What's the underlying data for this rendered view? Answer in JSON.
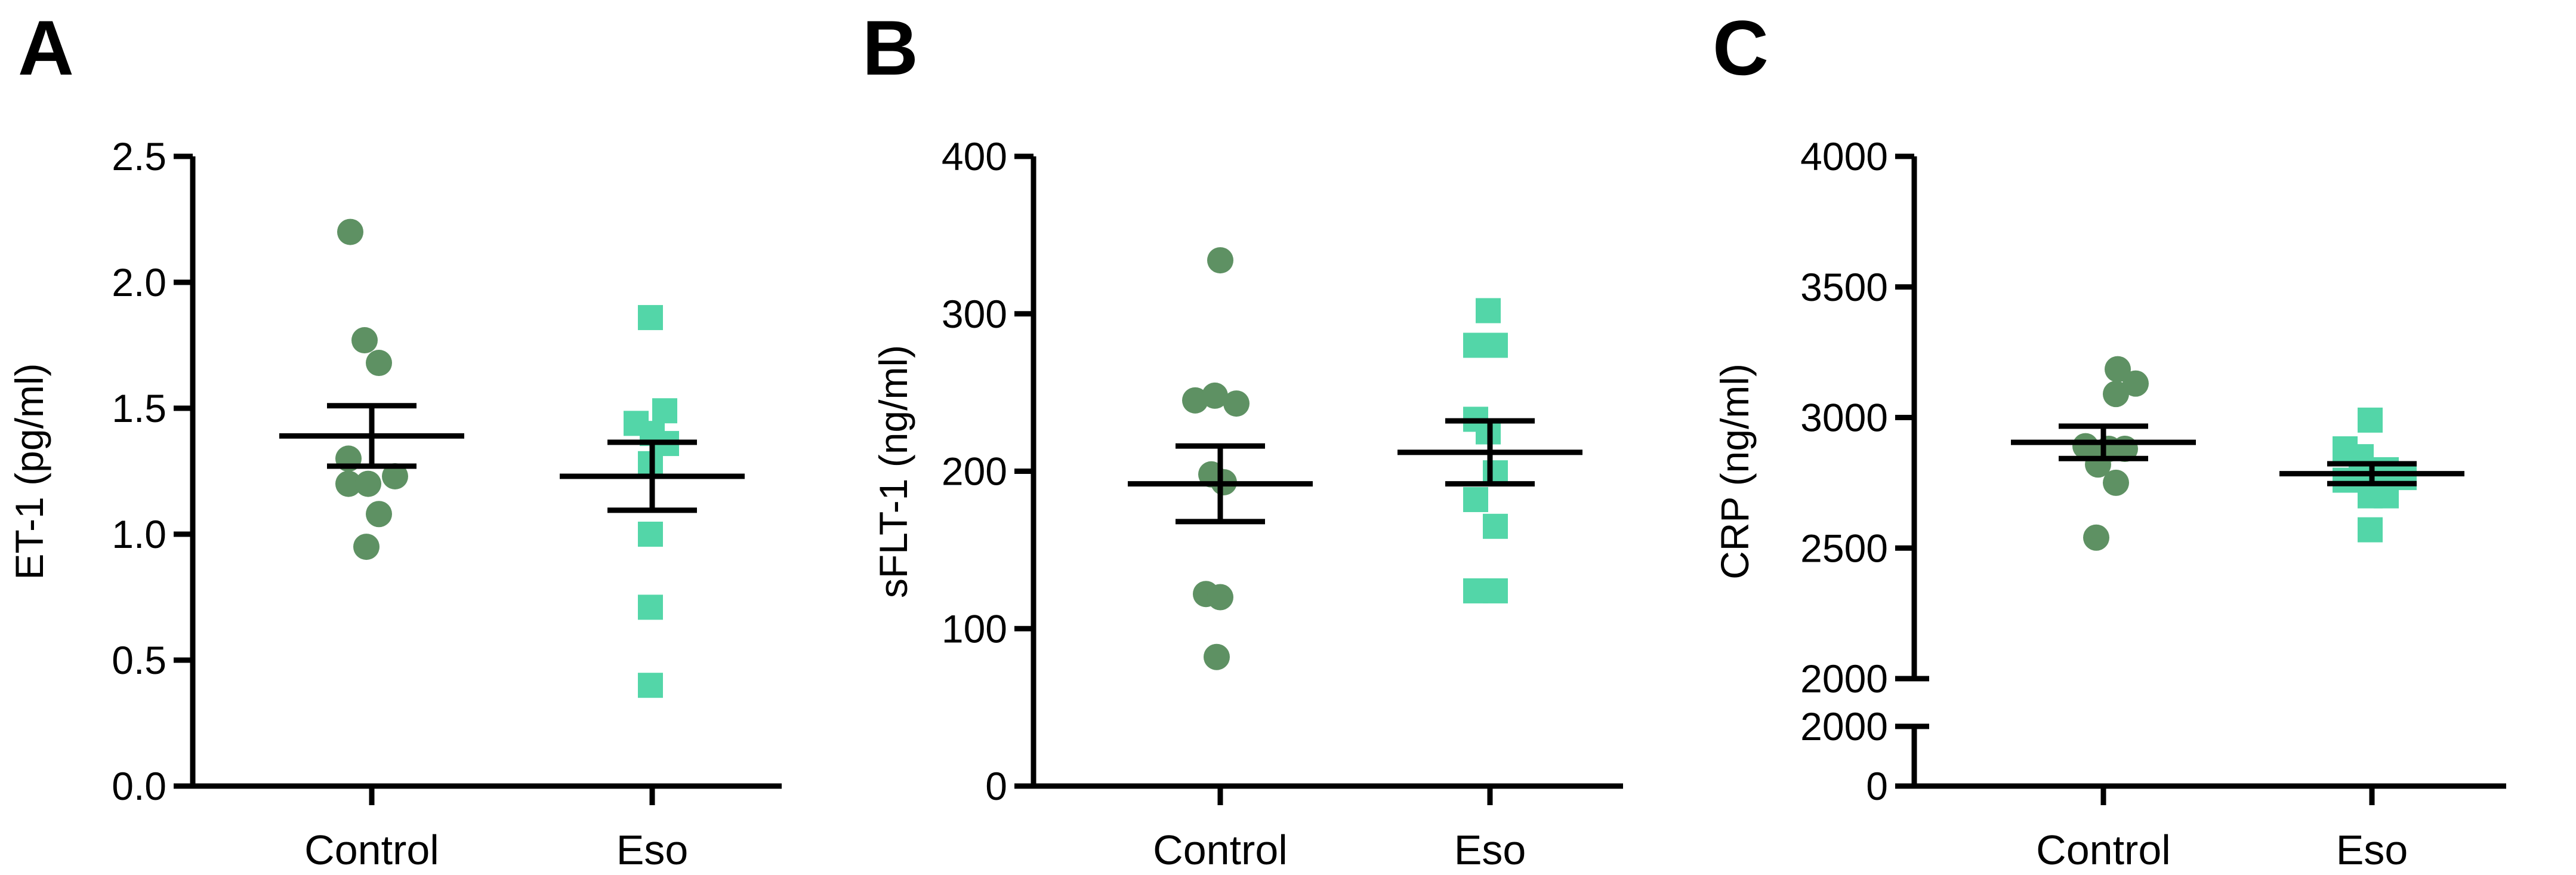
{
  "chart_data": [
    {
      "panel": "A",
      "type": "scatter",
      "ylabel": "ET-1 (pg/ml)",
      "categories": [
        "Control",
        "Eso"
      ],
      "ylim": [
        0,
        2.5
      ],
      "yticks": [
        0.0,
        0.5,
        1.0,
        1.5,
        2.0,
        2.5
      ],
      "ytick_labels": [
        "0.0",
        "0.5",
        "1.0",
        "1.5",
        "2.0",
        "2.5"
      ],
      "series": [
        {
          "name": "Control",
          "marker": "circle",
          "color": "#5e9163",
          "points": [
            [
              -0.12,
              2.2
            ],
            [
              -0.04,
              1.77
            ],
            [
              0.04,
              1.68
            ],
            [
              -0.13,
              1.3
            ],
            [
              -0.13,
              1.2
            ],
            [
              0.13,
              1.23
            ],
            [
              -0.02,
              1.2
            ],
            [
              0.04,
              1.08
            ],
            [
              -0.03,
              0.95
            ]
          ],
          "mean": 1.39,
          "sem": 0.12
        },
        {
          "name": "Eso",
          "marker": "square",
          "color": "#53d6a8",
          "points": [
            [
              -0.01,
              1.86
            ],
            [
              0.07,
              1.49
            ],
            [
              -0.09,
              1.44
            ],
            [
              0.0,
              1.4
            ],
            [
              0.08,
              1.36
            ],
            [
              -0.01,
              1.28
            ],
            [
              -0.01,
              1.0
            ],
            [
              -0.01,
              0.71
            ],
            [
              -0.01,
              0.4
            ]
          ],
          "mean": 1.23,
          "sem": 0.135
        }
      ]
    },
    {
      "panel": "B",
      "type": "scatter",
      "ylabel": "sFLT-1 (ng/ml)",
      "categories": [
        "Control",
        "Eso"
      ],
      "ylim": [
        0,
        400
      ],
      "yticks": [
        0,
        100,
        200,
        300,
        400
      ],
      "ytick_labels": [
        "0",
        "100",
        "200",
        "300",
        "400"
      ],
      "series": [
        {
          "name": "Control",
          "marker": "circle",
          "color": "#5e9163",
          "points": [
            [
              0.0,
              334
            ],
            [
              -0.14,
              245
            ],
            [
              -0.03,
              248
            ],
            [
              0.09,
              243
            ],
            [
              -0.05,
              198
            ],
            [
              0.02,
              193
            ],
            [
              -0.08,
              122
            ],
            [
              0.0,
              120
            ],
            [
              -0.02,
              82
            ]
          ],
          "mean": 192,
          "sem": 24
        },
        {
          "name": "Eso",
          "marker": "square",
          "color": "#53d6a8",
          "points": [
            [
              -0.01,
              302
            ],
            [
              -0.08,
              280
            ],
            [
              0.03,
              280
            ],
            [
              -0.08,
              233
            ],
            [
              -0.01,
              225
            ],
            [
              0.03,
              199
            ],
            [
              -0.08,
              182
            ],
            [
              0.03,
              165
            ],
            [
              -0.08,
              124
            ],
            [
              0.03,
              124
            ]
          ],
          "mean": 212,
          "sem": 20
        }
      ]
    },
    {
      "panel": "C",
      "type": "scatter",
      "ylabel": "CRP (ng/ml)",
      "categories": [
        "Control",
        "Eso"
      ],
      "axis_break": true,
      "lower_segment": {
        "ylim": [
          0,
          2000
        ],
        "ytick_labels": [
          "0",
          "2000"
        ]
      },
      "upper_segment": {
        "ylim": [
          2000,
          4000
        ],
        "yticks": [
          2000,
          2500,
          3000,
          3500,
          4000
        ],
        "ytick_labels": [
          "2000",
          "2500",
          "3000",
          "3500",
          "4000"
        ]
      },
      "series": [
        {
          "name": "Control",
          "marker": "circle",
          "color": "#5e9163",
          "points": [
            [
              0.08,
              3185
            ],
            [
              0.07,
              3090
            ],
            [
              0.18,
              3130
            ],
            [
              -0.1,
              2890
            ],
            [
              0.03,
              2880
            ],
            [
              0.12,
              2880
            ],
            [
              -0.03,
              2820
            ],
            [
              0.07,
              2750
            ],
            [
              -0.04,
              2540
            ]
          ],
          "mean": 2905,
          "sem": 62
        },
        {
          "name": "Eso",
          "marker": "square",
          "color": "#53d6a8",
          "points": [
            [
              -0.15,
              2880
            ],
            [
              -0.01,
              2990
            ],
            [
              -0.06,
              2850
            ],
            [
              0.08,
              2800
            ],
            [
              -0.15,
              2760
            ],
            [
              -0.06,
              2760
            ],
            [
              0.03,
              2770
            ],
            [
              0.18,
              2770
            ],
            [
              -0.01,
              2700
            ],
            [
              0.08,
              2700
            ],
            [
              -0.01,
              2570
            ]
          ],
          "mean": 2785,
          "sem": 38
        }
      ]
    }
  ]
}
